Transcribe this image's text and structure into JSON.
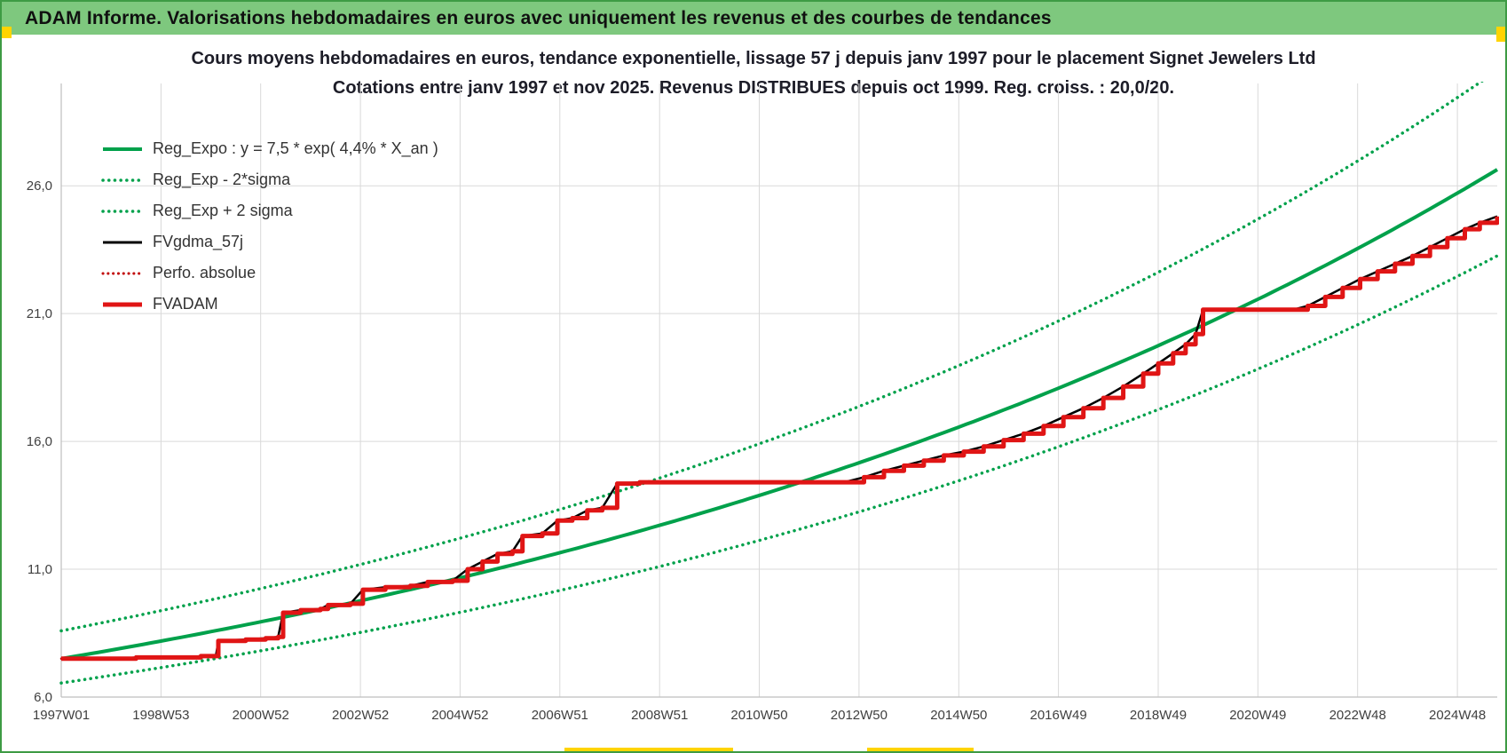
{
  "frame": {
    "border_color": "#3E9B44",
    "accent_yellow": "#FFD400",
    "header": {
      "text": "ADAM Informe. Valorisations hebdomadaires en euros avec uniquement les revenus et des courbes de tendances",
      "bg_color": "#7EC87E"
    }
  },
  "chart_data": {
    "type": "line",
    "title": "Cours moyens hebdomadaires en euros, tendance exponentielle, lissage 57 j depuis janv 1997 pour le placement Signet Jewelers Ltd",
    "subtitle": "Cotations entre janv 1997 et nov 2025. Revenus DISTRIBUES depuis oct 1999. Reg. croiss. : 20,0/20.",
    "grid_color": "#D9D9D9",
    "axis_line_color": "#BFBFBF",
    "tick_label_color": "#404040",
    "x_axis": {
      "tick_labels": [
        "1997W01",
        "1998W53",
        "2000W52",
        "2002W52",
        "2004W52",
        "2006W51",
        "2008W51",
        "2010W50",
        "2012W50",
        "2014W50",
        "2016W49",
        "2018W49",
        "2020W49",
        "2022W48",
        "2024W48"
      ],
      "tick_years": [
        0,
        2,
        4,
        6,
        8,
        10,
        12,
        14,
        16,
        18,
        20,
        22,
        24,
        26,
        28
      ],
      "range_years": [
        0,
        28.8
      ]
    },
    "y_axis": {
      "ticks": [
        6,
        11,
        16,
        21,
        26
      ],
      "tick_labels": [
        "6,0",
        "11,0",
        "16,0",
        "21,0",
        "26,0"
      ],
      "range": [
        6,
        30
      ]
    },
    "legend": [
      {
        "label": "Reg_Expo : y = 7,5 * exp( 4,4% *  X_an )",
        "color": "#00A14B",
        "style": "solid",
        "width": 4
      },
      {
        "label": "Reg_Exp - 2*sigma",
        "color": "#00A14B",
        "style": "dotted",
        "width": 3.5
      },
      {
        "label": "Reg_Exp + 2 sigma",
        "color": "#00A14B",
        "style": "dotted",
        "width": 3.5
      },
      {
        "label": "FVgdma_57j",
        "color": "#000000",
        "style": "solid",
        "width": 3
      },
      {
        "label": "Perfo. absolue",
        "color": "#C00000",
        "style": "dotted",
        "width": 3
      },
      {
        "label": "FVADAM",
        "color": "#E01515",
        "style": "solid",
        "width": 5
      }
    ],
    "series": [
      {
        "name": "Reg_Expo",
        "kind": "exponential",
        "a": 7.5,
        "rate": 0.044,
        "color": "#00A14B",
        "style": "solid",
        "width": 4
      },
      {
        "name": "Reg_Exp - 2*sigma",
        "kind": "exponential",
        "a": 6.55,
        "rate": 0.044,
        "color": "#00A14B",
        "style": "dotted",
        "width": 3.5
      },
      {
        "name": "Reg_Exp + 2 sigma",
        "kind": "exponential",
        "a": 8.59,
        "rate": 0.044,
        "color": "#00A14B",
        "style": "dotted",
        "width": 3.5
      },
      {
        "name": "FVgdma_57j",
        "kind": "smooth",
        "points": "fvadam_points",
        "color": "#000000",
        "style": "solid",
        "width": 2.5
      },
      {
        "name": "Perfo. absolue",
        "kind": "step",
        "points": "fvadam_points",
        "color": "#C00000",
        "style": "dotted",
        "width": 2.5
      },
      {
        "name": "FVADAM",
        "kind": "step",
        "points": "fvadam_points",
        "color": "#E01515",
        "style": "solid",
        "width": 5
      }
    ],
    "fvadam_points": [
      [
        0,
        7.5
      ],
      [
        1.2,
        7.5
      ],
      [
        1.5,
        7.55
      ],
      [
        2.6,
        7.55
      ],
      [
        2.8,
        7.6
      ],
      [
        3.1,
        7.6
      ],
      [
        3.15,
        8.2
      ],
      [
        3.7,
        8.25
      ],
      [
        4.1,
        8.3
      ],
      [
        4.35,
        8.35
      ],
      [
        4.45,
        9.3
      ],
      [
        4.8,
        9.4
      ],
      [
        5.2,
        9.45
      ],
      [
        5.35,
        9.6
      ],
      [
        5.8,
        9.65
      ],
      [
        6.05,
        10.2
      ],
      [
        6.5,
        10.3
      ],
      [
        7.0,
        10.35
      ],
      [
        7.35,
        10.5
      ],
      [
        7.85,
        10.55
      ],
      [
        8.15,
        11.0
      ],
      [
        8.45,
        11.3
      ],
      [
        8.75,
        11.6
      ],
      [
        9.05,
        11.7
      ],
      [
        9.25,
        12.3
      ],
      [
        9.65,
        12.4
      ],
      [
        9.95,
        12.9
      ],
      [
        10.25,
        13.0
      ],
      [
        10.55,
        13.3
      ],
      [
        10.85,
        13.4
      ],
      [
        11.15,
        14.35
      ],
      [
        11.6,
        14.4
      ],
      [
        15.7,
        14.4
      ],
      [
        16.1,
        14.6
      ],
      [
        16.5,
        14.85
      ],
      [
        16.9,
        15.05
      ],
      [
        17.3,
        15.25
      ],
      [
        17.7,
        15.45
      ],
      [
        18.1,
        15.6
      ],
      [
        18.5,
        15.8
      ],
      [
        18.9,
        16.05
      ],
      [
        19.3,
        16.3
      ],
      [
        19.7,
        16.6
      ],
      [
        20.1,
        16.95
      ],
      [
        20.5,
        17.3
      ],
      [
        20.9,
        17.7
      ],
      [
        21.3,
        18.15
      ],
      [
        21.7,
        18.65
      ],
      [
        22.0,
        19.05
      ],
      [
        22.3,
        19.45
      ],
      [
        22.55,
        19.8
      ],
      [
        22.75,
        20.2
      ],
      [
        22.9,
        21.15
      ],
      [
        24.7,
        21.15
      ],
      [
        25.0,
        21.3
      ],
      [
        25.35,
        21.65
      ],
      [
        25.7,
        22.0
      ],
      [
        26.05,
        22.35
      ],
      [
        26.4,
        22.65
      ],
      [
        26.75,
        22.95
      ],
      [
        27.1,
        23.25
      ],
      [
        27.45,
        23.6
      ],
      [
        27.8,
        23.95
      ],
      [
        28.15,
        24.3
      ],
      [
        28.45,
        24.55
      ],
      [
        28.8,
        24.8
      ]
    ]
  }
}
